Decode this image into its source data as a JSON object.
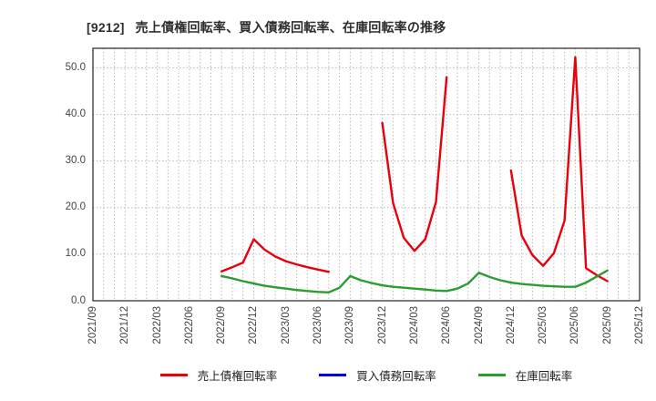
{
  "header": {
    "code": "[9212]",
    "title": "売上債権回転率、買入債務回転率、在庫回転率の推移"
  },
  "chart_data": {
    "type": "line",
    "title": "[9212] 売上債権回転率、買入債務回転率、在庫回転率の推移",
    "grid": {
      "vertical": "monthly-dotted",
      "horizontal": "every-10-dotted"
    },
    "legend_position": "bottom-center",
    "x_axis": {
      "start": "2021/09",
      "end": "2025/12",
      "months_total": 51,
      "tick_labels": [
        "2021/09",
        "2021/12",
        "2022/03",
        "2022/06",
        "2022/09",
        "2022/12",
        "2023/03",
        "2023/06",
        "2023/09",
        "2023/12",
        "2024/03",
        "2024/06",
        "2024/09",
        "2024/12",
        "2025/03",
        "2025/06",
        "2025/09",
        "2025/12"
      ]
    },
    "y_axis": {
      "values": [
        0,
        10,
        20,
        30,
        40,
        50
      ],
      "tick_labels": [
        "0.0",
        "10.0",
        "20.0",
        "30.0",
        "40.0",
        "50.0"
      ],
      "max": 54.2
    },
    "series": [
      {
        "name": "売上債権回転率",
        "color": "#e8000d",
        "segments": [
          [
            [
              "2022/09",
              6.3
            ],
            [
              "2022/10",
              7.2
            ],
            [
              "2022/11",
              8.2
            ],
            [
              "2022/12",
              13.2
            ],
            [
              "2023/01",
              11.0
            ],
            [
              "2023/02",
              9.5
            ],
            [
              "2023/03",
              8.5
            ],
            [
              "2023/04",
              7.8
            ],
            [
              "2023/05",
              7.2
            ],
            [
              "2023/06",
              6.7
            ],
            [
              "2023/07",
              6.2
            ]
          ],
          [
            [
              "2023/12",
              38.2
            ],
            [
              "2024/01",
              21.0
            ],
            [
              "2024/02",
              13.5
            ],
            [
              "2024/03",
              10.7
            ],
            [
              "2024/04",
              13.2
            ],
            [
              "2024/05",
              21.2
            ],
            [
              "2024/06",
              48.0
            ]
          ],
          [
            [
              "2024/12",
              28.0
            ],
            [
              "2025/01",
              14.0
            ],
            [
              "2025/02",
              9.8
            ],
            [
              "2025/03",
              7.5
            ],
            [
              "2025/04",
              10.2
            ],
            [
              "2025/05",
              17.2
            ],
            [
              "2025/06",
              52.3
            ],
            [
              "2025/07",
              7.0
            ],
            [
              "2025/08",
              5.5
            ],
            [
              "2025/09",
              4.2
            ]
          ]
        ]
      },
      {
        "name": "買入債務回転率",
        "color": "#0000dd",
        "segments": []
      },
      {
        "name": "在庫回転率",
        "color": "#2a9c33",
        "segments": [
          [
            [
              "2022/09",
              5.3
            ],
            [
              "2022/10",
              4.8
            ],
            [
              "2022/11",
              4.2
            ],
            [
              "2022/12",
              3.7
            ],
            [
              "2023/01",
              3.2
            ],
            [
              "2023/02",
              2.9
            ],
            [
              "2023/03",
              2.6
            ],
            [
              "2023/04",
              2.3
            ],
            [
              "2023/05",
              2.1
            ],
            [
              "2023/06",
              1.9
            ],
            [
              "2023/07",
              1.8
            ],
            [
              "2023/08",
              2.8
            ],
            [
              "2023/09",
              5.3
            ],
            [
              "2023/10",
              4.4
            ],
            [
              "2023/11",
              3.8
            ],
            [
              "2023/12",
              3.3
            ],
            [
              "2024/01",
              3.0
            ],
            [
              "2024/02",
              2.8
            ],
            [
              "2024/03",
              2.6
            ],
            [
              "2024/04",
              2.4
            ],
            [
              "2024/05",
              2.2
            ],
            [
              "2024/06",
              2.1
            ],
            [
              "2024/07",
              2.6
            ],
            [
              "2024/08",
              3.7
            ],
            [
              "2024/09",
              6.0
            ],
            [
              "2024/10",
              5.1
            ],
            [
              "2024/11",
              4.4
            ],
            [
              "2024/12",
              3.9
            ],
            [
              "2025/01",
              3.6
            ],
            [
              "2025/02",
              3.4
            ],
            [
              "2025/03",
              3.2
            ],
            [
              "2025/04",
              3.1
            ],
            [
              "2025/05",
              3.0
            ],
            [
              "2025/06",
              3.0
            ],
            [
              "2025/07",
              3.9
            ],
            [
              "2025/08",
              5.2
            ],
            [
              "2025/09",
              6.5
            ]
          ]
        ]
      }
    ]
  }
}
